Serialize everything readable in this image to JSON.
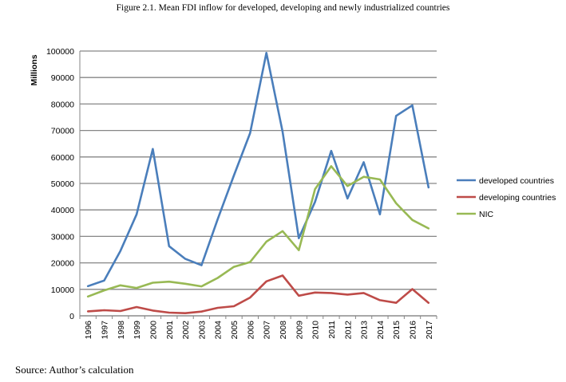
{
  "figure_caption": "Figure 2.1. Mean FDI inflow for developed, developing and newly industrialized countries",
  "source_note": "Source: Author’s calculation",
  "chart_data": {
    "type": "line",
    "title": "",
    "xlabel": "",
    "ylabel": "Millions",
    "ylim": [
      0,
      100000
    ],
    "yticks": [
      0,
      10000,
      20000,
      30000,
      40000,
      50000,
      60000,
      70000,
      80000,
      90000,
      100000
    ],
    "grid": true,
    "legend_position": "right",
    "categories": [
      "1996",
      "1997",
      "1998",
      "1999",
      "2000",
      "2001",
      "2002",
      "2003",
      "2004",
      "2005",
      "2006",
      "2007",
      "2008",
      "2009",
      "2010",
      "2011",
      "2012",
      "2013",
      "2014",
      "2015",
      "2016",
      "2017"
    ],
    "series": [
      {
        "name": "developed countries",
        "color": "#4a7ebb",
        "values": [
          11200,
          13300,
          24500,
          38300,
          63000,
          26300,
          21500,
          19100,
          36500,
          53000,
          69000,
          99300,
          69500,
          29300,
          43000,
          62300,
          44300,
          58000,
          38300,
          75500,
          79500,
          48500
        ]
      },
      {
        "name": "developing countries",
        "color": "#be4b48",
        "values": [
          1700,
          2100,
          1800,
          3300,
          2000,
          1200,
          1000,
          1600,
          3000,
          3600,
          6900,
          13000,
          15200,
          7600,
          8800,
          8600,
          8000,
          8600,
          5900,
          4900,
          10100,
          4900
        ]
      },
      {
        "name": "NIC",
        "color": "#98b954",
        "values": [
          7300,
          9600,
          11500,
          10500,
          12500,
          12900,
          12100,
          11100,
          14300,
          18500,
          20300,
          28000,
          32000,
          24800,
          47800,
          56500,
          49000,
          52500,
          51500,
          42500,
          36200,
          33000
        ]
      }
    ]
  }
}
